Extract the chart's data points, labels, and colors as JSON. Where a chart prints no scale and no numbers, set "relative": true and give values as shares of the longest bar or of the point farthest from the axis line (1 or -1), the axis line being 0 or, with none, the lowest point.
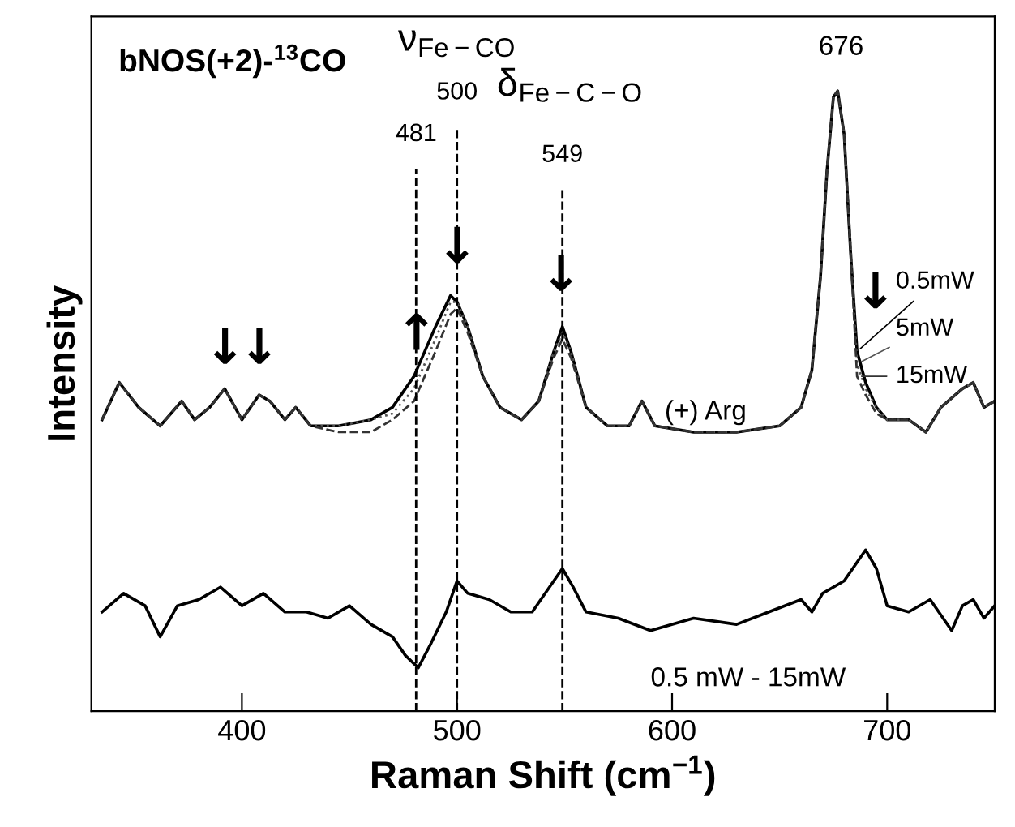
{
  "chart_data": {
    "type": "line",
    "relative": true,
    "title": "bNOS(+2)-$^{13}$CO",
    "xlabel": "Raman Shift (cm$^{−1}$)",
    "ylabel": "Intensity",
    "xlim": [
      330,
      750
    ],
    "xticks": [
      400,
      500,
      600,
      700
    ],
    "grid": false,
    "legend": "right",
    "marker": "none",
    "x": [
      335,
      343,
      352,
      362,
      372,
      378,
      385,
      392,
      400,
      408,
      413,
      420,
      425,
      432,
      445,
      460,
      470,
      480,
      490,
      497,
      500,
      505,
      512,
      520,
      530,
      538,
      545,
      549,
      553,
      560,
      570,
      580,
      586,
      592,
      610,
      630,
      650,
      660,
      665,
      669,
      672,
      675,
      677,
      680,
      683,
      686,
      690,
      695,
      700,
      710,
      718,
      725,
      735,
      740,
      745,
      750
    ],
    "series": [
      {
        "name": "0.5mW",
        "color": "#000000",
        "line_style": "solid",
        "values": [
          0.47,
          0.53,
          0.49,
          0.46,
          0.5,
          0.47,
          0.49,
          0.52,
          0.47,
          0.51,
          0.5,
          0.47,
          0.49,
          0.46,
          0.46,
          0.47,
          0.49,
          0.54,
          0.62,
          0.67,
          0.66,
          0.62,
          0.54,
          0.49,
          0.47,
          0.5,
          0.58,
          0.62,
          0.58,
          0.49,
          0.46,
          0.46,
          0.5,
          0.46,
          0.45,
          0.45,
          0.46,
          0.49,
          0.55,
          0.7,
          0.87,
          0.99,
          1.0,
          0.93,
          0.74,
          0.58,
          0.53,
          0.49,
          0.47,
          0.47,
          0.45,
          0.49,
          0.52,
          0.53,
          0.49,
          0.5
        ]
      },
      {
        "name": "5mW",
        "color": "#555555",
        "line_style": "dotted",
        "values": [
          0.47,
          0.53,
          0.49,
          0.46,
          0.5,
          0.47,
          0.49,
          0.52,
          0.47,
          0.51,
          0.5,
          0.47,
          0.49,
          0.46,
          0.46,
          0.47,
          0.48,
          0.52,
          0.6,
          0.66,
          0.66,
          0.62,
          0.54,
          0.49,
          0.47,
          0.5,
          0.58,
          0.61,
          0.58,
          0.49,
          0.46,
          0.46,
          0.5,
          0.46,
          0.45,
          0.45,
          0.46,
          0.49,
          0.55,
          0.7,
          0.87,
          0.99,
          1.0,
          0.93,
          0.75,
          0.56,
          0.52,
          0.49,
          0.47,
          0.47,
          0.45,
          0.49,
          0.52,
          0.53,
          0.49,
          0.5
        ]
      },
      {
        "name": "15mW",
        "color": "#333333",
        "line_style": "dashed",
        "values": [
          0.47,
          0.53,
          0.49,
          0.46,
          0.5,
          0.47,
          0.49,
          0.52,
          0.47,
          0.51,
          0.5,
          0.47,
          0.49,
          0.46,
          0.45,
          0.45,
          0.47,
          0.5,
          0.58,
          0.64,
          0.65,
          0.61,
          0.54,
          0.49,
          0.47,
          0.5,
          0.57,
          0.6,
          0.57,
          0.49,
          0.46,
          0.46,
          0.5,
          0.46,
          0.45,
          0.45,
          0.46,
          0.49,
          0.55,
          0.7,
          0.87,
          0.99,
          1.0,
          0.93,
          0.74,
          0.54,
          0.51,
          0.48,
          0.47,
          0.47,
          0.45,
          0.49,
          0.52,
          0.53,
          0.49,
          0.5
        ]
      },
      {
        "name": "0.5 mW - 15mW",
        "color": "#000000",
        "line_style": "solid",
        "x": [
          335,
          345,
          355,
          362,
          370,
          380,
          390,
          400,
          410,
          420,
          430,
          440,
          450,
          460,
          470,
          476,
          482,
          488,
          495,
          500,
          505,
          515,
          525,
          535,
          545,
          549,
          554,
          560,
          575,
          590,
          610,
          630,
          645,
          660,
          665,
          670,
          680,
          690,
          695,
          700,
          710,
          720,
          730,
          735,
          740,
          745,
          750
        ],
        "values": [
          0.16,
          0.19,
          0.17,
          0.12,
          0.17,
          0.18,
          0.2,
          0.17,
          0.19,
          0.16,
          0.16,
          0.15,
          0.17,
          0.14,
          0.12,
          0.09,
          0.07,
          0.11,
          0.16,
          0.21,
          0.19,
          0.18,
          0.16,
          0.16,
          0.21,
          0.23,
          0.2,
          0.16,
          0.15,
          0.13,
          0.15,
          0.14,
          0.16,
          0.18,
          0.16,
          0.19,
          0.21,
          0.26,
          0.23,
          0.17,
          0.16,
          0.18,
          0.13,
          0.17,
          0.18,
          0.15,
          0.17
        ]
      }
    ],
    "ref_lines": [
      {
        "axis": "x",
        "value": 481,
        "label": "481",
        "line_style": "dashed",
        "color": "#000000"
      },
      {
        "axis": "x",
        "value": 500,
        "label": "500",
        "line_style": "dashed",
        "color": "#000000"
      },
      {
        "axis": "x",
        "value": 549,
        "label": "549",
        "line_style": "dashed",
        "color": "#000000"
      }
    ],
    "annotations": [
      "ν$_{Fe−CO}$",
      "δ$_{Fe−C−O}$",
      "676",
      "(+) Arg",
      "↓",
      "↓",
      "↑",
      "↓",
      "↓",
      "↓"
    ]
  }
}
